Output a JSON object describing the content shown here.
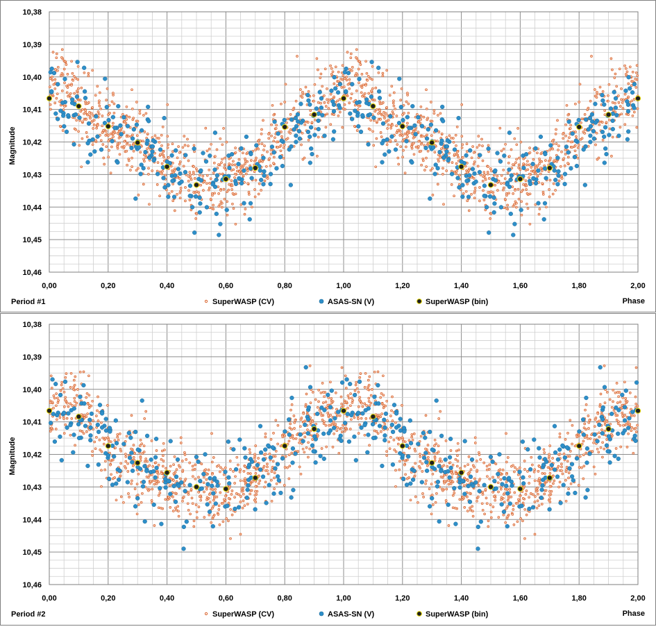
{
  "colors": {
    "cv": "#d9622b",
    "asas": "#2e8fc9",
    "asas_edge": "#1b6a9a",
    "bin_fill": "#1e1e1e",
    "bin_edge": "#e3d600",
    "major_grid": "#8c8c8c",
    "minor_grid": "#cfcfcf"
  },
  "chart_data": [
    {
      "type": "scatter",
      "period_label": "Period #1",
      "xlabel": "Phase",
      "ylabel": "Magnitude",
      "xlim": [
        0,
        2
      ],
      "ylim": [
        10.38,
        10.46
      ],
      "y_inverted": true,
      "x_ticks": [
        "0,00",
        "0,20",
        "0,40",
        "0,60",
        "0,80",
        "1,00",
        "1,20",
        "1,40",
        "1,60",
        "1,80",
        "2,00"
      ],
      "y_ticks": [
        "10,38",
        "10,39",
        "10,40",
        "10,41",
        "10,42",
        "10,43",
        "10,44",
        "10,45",
        "10,46"
      ],
      "legend": [
        "SuperWASP (CV)",
        "ASAS-SN (V)",
        "SuperWASP (bin)"
      ],
      "legend_position": "bottom",
      "grid": true,
      "bin_series": {
        "name": "SuperWASP (bin)",
        "x": [
          0.0,
          0.1,
          0.2,
          0.3,
          0.4,
          0.5,
          0.6,
          0.7,
          0.8,
          0.9,
          1.0,
          1.1,
          1.2,
          1.3,
          1.4,
          1.5,
          1.6,
          1.7,
          1.8,
          1.9,
          2.0
        ],
        "y": [
          10.4066,
          10.409,
          10.4152,
          10.4202,
          10.4276,
          10.4332,
          10.4314,
          10.428,
          10.4154,
          10.4116,
          10.4066,
          10.409,
          10.4152,
          10.4202,
          10.4276,
          10.4332,
          10.4314,
          10.428,
          10.4154,
          10.4116,
          10.4066
        ]
      },
      "cv_curve": {
        "name": "SuperWASP (CV)",
        "points": 800,
        "phase": [
          0.0,
          0.05,
          0.1,
          0.2,
          0.3,
          0.4,
          0.5,
          0.6,
          0.7,
          0.8,
          0.9,
          1.0
        ],
        "mag": [
          10.405,
          10.403,
          10.409,
          10.415,
          10.42,
          10.427,
          10.432,
          10.431,
          10.428,
          10.415,
          10.41,
          10.405
        ],
        "scatter_sd": 0.0055
      },
      "asas_curve": {
        "name": "ASAS-SN (V)",
        "points": 230,
        "phase": [
          0.0,
          0.1,
          0.2,
          0.3,
          0.4,
          0.5,
          0.6,
          0.7,
          0.8,
          0.9,
          1.0
        ],
        "mag": [
          10.407,
          10.41,
          10.416,
          10.42,
          10.427,
          10.433,
          10.432,
          10.43,
          10.42,
          10.413,
          10.407
        ],
        "scatter_sd": 0.0065
      }
    },
    {
      "type": "scatter",
      "period_label": "Period #2",
      "xlabel": "Phase",
      "ylabel": "Magnitude",
      "xlim": [
        0,
        2
      ],
      "ylim": [
        10.38,
        10.46
      ],
      "y_inverted": true,
      "x_ticks": [
        "0,00",
        "0,20",
        "0,40",
        "0,60",
        "0,80",
        "1,00",
        "1,20",
        "1,40",
        "1,60",
        "1,80",
        "2,00"
      ],
      "y_ticks": [
        "10,38",
        "10,39",
        "10,40",
        "10,41",
        "10,42",
        "10,43",
        "10,44",
        "10,45",
        "10,46"
      ],
      "legend": [
        "SuperWASP (CV)",
        "ASAS-SN (V)",
        "SuperWASP (bin)"
      ],
      "legend_position": "bottom",
      "grid": true,
      "bin_series": {
        "name": "SuperWASP (bin)",
        "x": [
          0.0,
          0.1,
          0.2,
          0.3,
          0.4,
          0.5,
          0.6,
          0.7,
          0.8,
          0.9,
          1.0,
          1.1,
          1.2,
          1.3,
          1.4,
          1.5,
          1.6,
          1.7,
          1.8,
          1.9,
          2.0
        ],
        "y": [
          10.4066,
          10.4084,
          10.4174,
          10.4226,
          10.4256,
          10.43,
          10.4306,
          10.4272,
          10.4174,
          10.4122,
          10.4066,
          10.4084,
          10.4174,
          10.4226,
          10.4256,
          10.43,
          10.4306,
          10.4272,
          10.4174,
          10.4122,
          10.4066
        ]
      },
      "cv_curve": {
        "name": "SuperWASP (CV)",
        "points": 800,
        "phase": [
          0.0,
          0.1,
          0.2,
          0.3,
          0.4,
          0.5,
          0.6,
          0.7,
          0.8,
          0.9,
          1.0
        ],
        "mag": [
          10.407,
          10.405,
          10.418,
          10.424,
          10.428,
          10.43,
          10.432,
          10.426,
          10.418,
          10.41,
          10.407
        ],
        "scatter_sd": 0.0058
      },
      "asas_curve": {
        "name": "ASAS-SN (V)",
        "points": 230,
        "phase": [
          0.0,
          0.1,
          0.2,
          0.3,
          0.4,
          0.5,
          0.6,
          0.7,
          0.8,
          0.9,
          1.0
        ],
        "mag": [
          10.407,
          10.41,
          10.416,
          10.424,
          10.428,
          10.432,
          10.432,
          10.428,
          10.418,
          10.412,
          10.407
        ],
        "scatter_sd": 0.0068
      }
    }
  ]
}
